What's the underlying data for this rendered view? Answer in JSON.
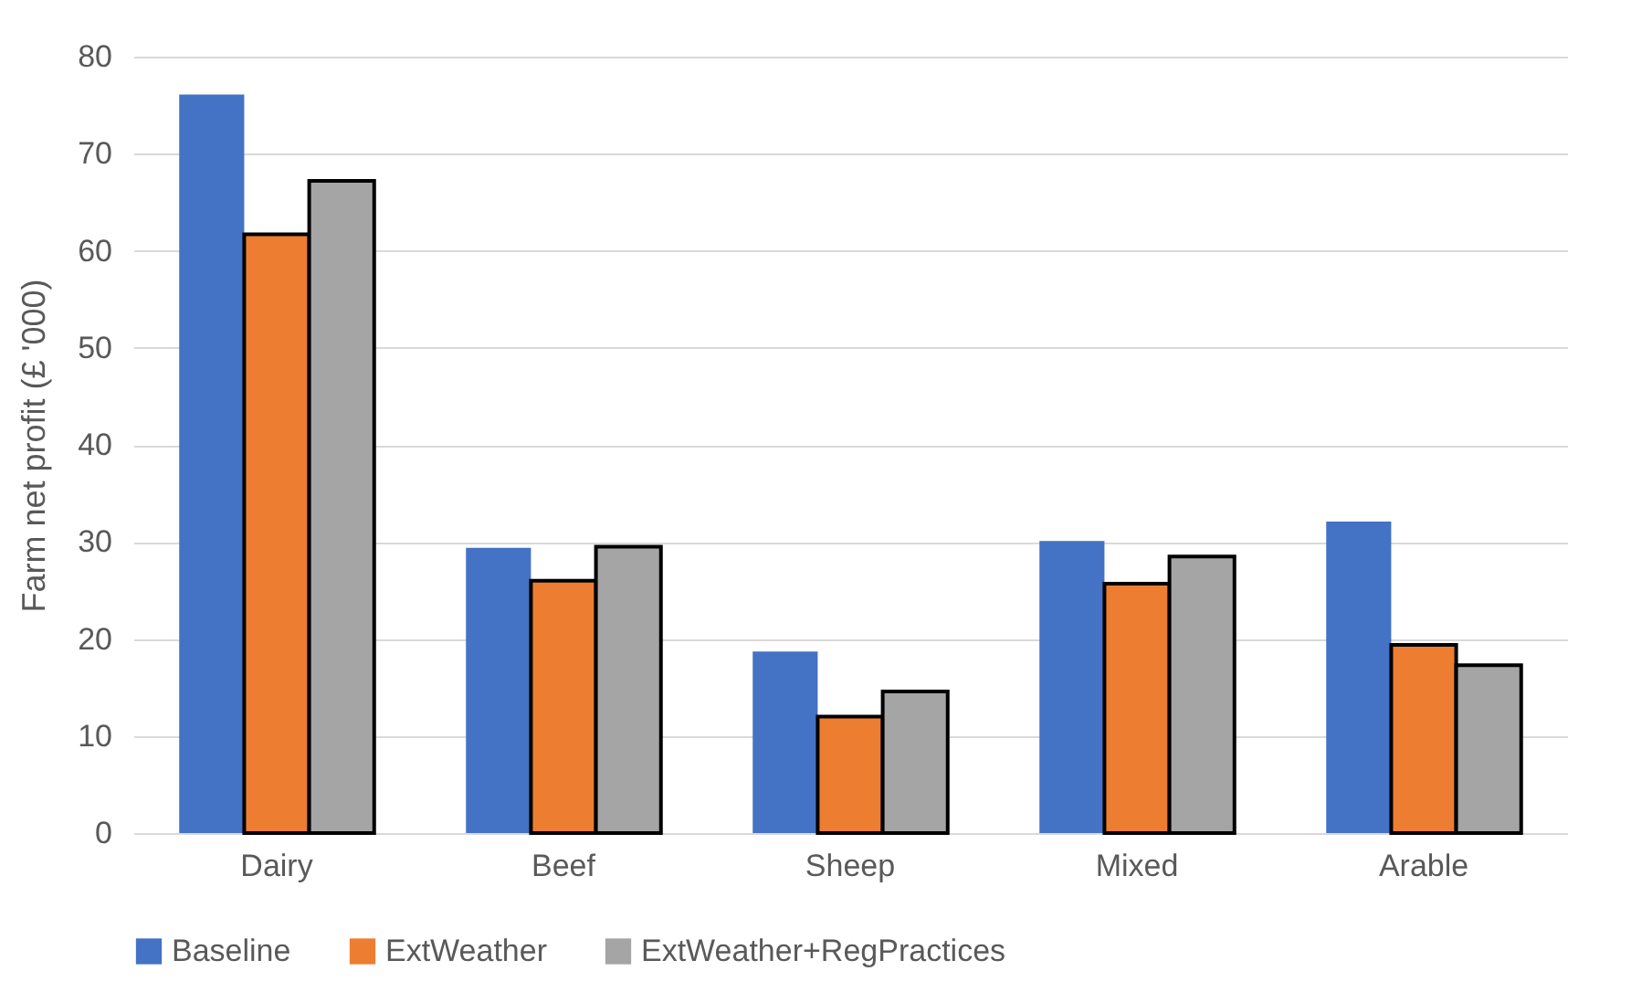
{
  "chart_data": {
    "type": "bar",
    "ylabel": "Farm net profit (£ '000)",
    "categories": [
      "Dairy",
      "Beef",
      "Sheep",
      "Mixed",
      "Arable"
    ],
    "series": [
      {
        "name": "Baseline",
        "color": "#4472c4",
        "values": [
          76.1,
          29.4,
          18.7,
          30.1,
          32.1
        ]
      },
      {
        "name": "ExtWeather",
        "color": "#ed7d31",
        "values": [
          61.7,
          26.0,
          12.0,
          25.7,
          19.4
        ]
      },
      {
        "name": "ExtWeather+RegPractices",
        "color": "#a5a5a5",
        "values": [
          67.2,
          29.5,
          14.6,
          28.5,
          17.3
        ]
      }
    ],
    "ylim": [
      0,
      80
    ],
    "yticks": [
      0,
      10,
      20,
      30,
      40,
      50,
      60,
      70,
      80
    ],
    "grid": "y",
    "legend": "bottom"
  }
}
